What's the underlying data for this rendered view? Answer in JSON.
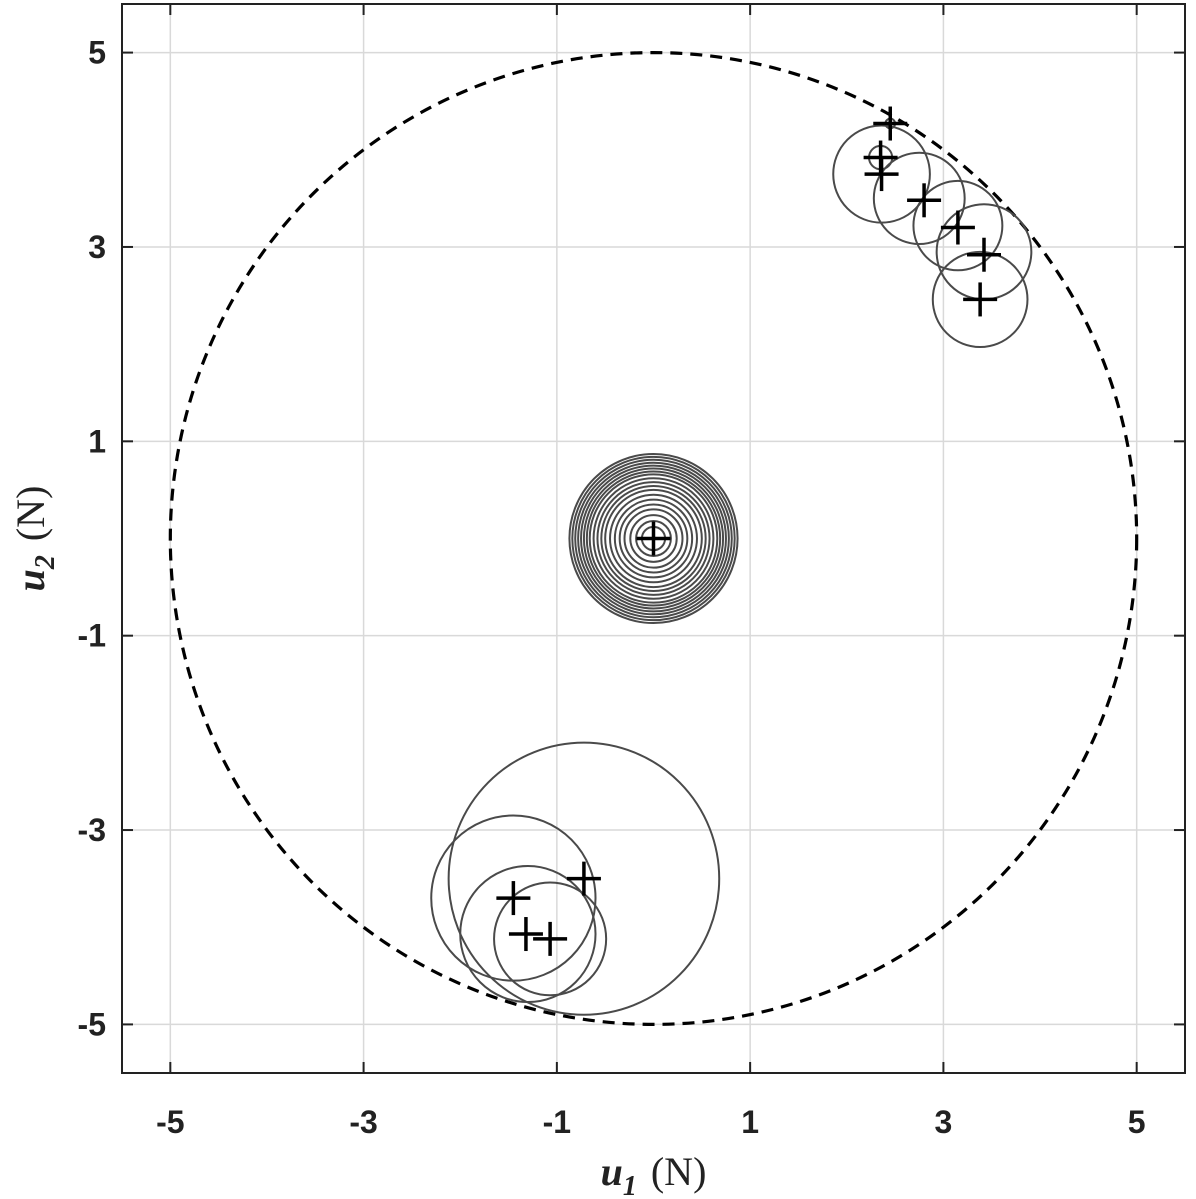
{
  "chart_data": {
    "type": "scatter",
    "xlabel": {
      "symbol": "u",
      "subscript": "1",
      "unit": "(N)"
    },
    "ylabel": {
      "symbol": "u",
      "subscript": "2",
      "unit": "(N)"
    },
    "xlim": [
      -5.5,
      5.5
    ],
    "ylim": [
      -5.5,
      5.5
    ],
    "xticks": [
      -5,
      -3,
      -1,
      1,
      3,
      5
    ],
    "yticks": [
      -5,
      -3,
      -1,
      1,
      3,
      5
    ],
    "grid": true,
    "boundary_circle": {
      "cx": 0,
      "cy": 0,
      "r": 5,
      "style": "dashed"
    },
    "series": [
      {
        "marker": "plus",
        "points": [
          {
            "x": 2.45,
            "y": 4.27
          },
          {
            "x": 2.35,
            "y": 3.92
          },
          {
            "x": 2.36,
            "y": 3.75
          },
          {
            "x": 2.8,
            "y": 3.48
          },
          {
            "x": 3.15,
            "y": 3.2
          },
          {
            "x": 3.42,
            "y": 2.92
          },
          {
            "x": 3.38,
            "y": 2.46
          },
          {
            "x": 0,
            "y": 0
          },
          {
            "x": -0.72,
            "y": -3.5
          },
          {
            "x": -1.45,
            "y": -3.7
          },
          {
            "x": -1.32,
            "y": -4.07
          },
          {
            "x": -1.07,
            "y": -4.12
          }
        ]
      },
      {
        "marker": "circle",
        "circles": [
          {
            "cx": 2.45,
            "cy": 4.27,
            "r": 0.05
          },
          {
            "cx": 2.35,
            "cy": 3.92,
            "r": 0.12
          },
          {
            "cx": 2.36,
            "cy": 3.75,
            "r": 0.5
          },
          {
            "cx": 2.75,
            "cy": 3.5,
            "r": 0.47
          },
          {
            "cx": 3.15,
            "cy": 3.22,
            "r": 0.46
          },
          {
            "cx": 3.42,
            "cy": 2.95,
            "r": 0.49
          },
          {
            "cx": 3.38,
            "cy": 2.46,
            "r": 0.49
          },
          {
            "cx": 0,
            "cy": 0,
            "r": 0.87
          },
          {
            "cx": 0,
            "cy": 0,
            "r": 0.84
          },
          {
            "cx": 0,
            "cy": 0,
            "r": 0.81
          },
          {
            "cx": 0,
            "cy": 0,
            "r": 0.78
          },
          {
            "cx": 0,
            "cy": 0,
            "r": 0.75
          },
          {
            "cx": 0,
            "cy": 0,
            "r": 0.72
          },
          {
            "cx": 0,
            "cy": 0,
            "r": 0.69
          },
          {
            "cx": 0,
            "cy": 0,
            "r": 0.66
          },
          {
            "cx": 0,
            "cy": 0,
            "r": 0.62
          },
          {
            "cx": 0,
            "cy": 0,
            "r": 0.58
          },
          {
            "cx": 0,
            "cy": 0,
            "r": 0.54
          },
          {
            "cx": 0,
            "cy": 0,
            "r": 0.5
          },
          {
            "cx": 0,
            "cy": 0,
            "r": 0.45
          },
          {
            "cx": 0,
            "cy": 0,
            "r": 0.4
          },
          {
            "cx": 0,
            "cy": 0,
            "r": 0.35
          },
          {
            "cx": 0,
            "cy": 0,
            "r": 0.3
          },
          {
            "cx": 0,
            "cy": 0,
            "r": 0.24
          },
          {
            "cx": 0,
            "cy": 0,
            "r": 0.18
          },
          {
            "cx": 0,
            "cy": 0,
            "r": 0.12
          },
          {
            "cx": -0.72,
            "cy": -3.5,
            "r": 1.4
          },
          {
            "cx": -1.45,
            "cy": -3.7,
            "r": 0.85
          },
          {
            "cx": -1.3,
            "cy": -4.07,
            "r": 0.7
          },
          {
            "cx": -1.07,
            "cy": -4.12,
            "r": 0.58
          }
        ]
      }
    ]
  },
  "colors": {
    "background": "#ffffff",
    "axes": "#222222",
    "grid": "#d9d9d9",
    "marker": "#000000",
    "circle": "#4a4a4a",
    "boundary": "#000000"
  }
}
